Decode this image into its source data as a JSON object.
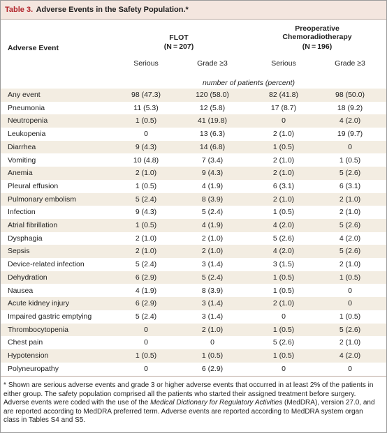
{
  "title": {
    "label": "Table 3.",
    "text": "Adverse Events in the Safety Population.*"
  },
  "header": {
    "event_column": "Adverse Event",
    "groups": [
      {
        "name": "FLOT",
        "n": "(N = 207)"
      },
      {
        "name": "Preoperative Chemoradiotherapy",
        "n": "(N = 196)"
      }
    ],
    "subheaders": [
      "Serious",
      "Grade ≥3",
      "Serious",
      "Grade ≥3"
    ],
    "units": "number of patients (percent)"
  },
  "table": {
    "rows": [
      [
        "Any event",
        "98 (47.3)",
        "120 (58.0)",
        "82 (41.8)",
        "98 (50.0)"
      ],
      [
        "Pneumonia",
        "11 (5.3)",
        "12 (5.8)",
        "17 (8.7)",
        "18 (9.2)"
      ],
      [
        "Neutropenia",
        "1 (0.5)",
        "41 (19.8)",
        "0",
        "4 (2.0)"
      ],
      [
        "Leukopenia",
        "0",
        "13 (6.3)",
        "2 (1.0)",
        "19 (9.7)"
      ],
      [
        "Diarrhea",
        "9 (4.3)",
        "14 (6.8)",
        "1 (0.5)",
        "0"
      ],
      [
        "Vomiting",
        "10 (4.8)",
        "7 (3.4)",
        "2 (1.0)",
        "1 (0.5)"
      ],
      [
        "Anemia",
        "2 (1.0)",
        "9 (4.3)",
        "2 (1.0)",
        "5 (2.6)"
      ],
      [
        "Pleural effusion",
        "1 (0.5)",
        "4 (1.9)",
        "6 (3.1)",
        "6 (3.1)"
      ],
      [
        "Pulmonary embolism",
        "5 (2.4)",
        "8 (3.9)",
        "2 (1.0)",
        "2 (1.0)"
      ],
      [
        "Infection",
        "9 (4.3)",
        "5 (2.4)",
        "1 (0.5)",
        "2 (1.0)"
      ],
      [
        "Atrial fibrillation",
        "1 (0.5)",
        "4 (1.9)",
        "4 (2.0)",
        "5 (2.6)"
      ],
      [
        "Dysphagia",
        "2 (1.0)",
        "2 (1.0)",
        "5 (2.6)",
        "4 (2.0)"
      ],
      [
        "Sepsis",
        "2 (1.0)",
        "2 (1.0)",
        "4 (2.0)",
        "5 (2.6)"
      ],
      [
        "Device-related infection",
        "5 (2.4)",
        "3 (1.4)",
        "3 (1.5)",
        "2 (1.0)"
      ],
      [
        "Dehydration",
        "6 (2.9)",
        "5 (2.4)",
        "1 (0.5)",
        "1 (0.5)"
      ],
      [
        "Nausea",
        "4 (1.9)",
        "8 (3.9)",
        "1 (0.5)",
        "0"
      ],
      [
        "Acute kidney injury",
        "6 (2.9)",
        "3 (1.4)",
        "2 (1.0)",
        "0"
      ],
      [
        "Impaired gastric emptying",
        "5 (2.4)",
        "3 (1.4)",
        "0",
        "1 (0.5)"
      ],
      [
        "Thrombocytopenia",
        "0",
        "2 (1.0)",
        "1 (0.5)",
        "5 (2.6)"
      ],
      [
        "Chest pain",
        "0",
        "0",
        "5 (2.6)",
        "2 (1.0)"
      ],
      [
        "Hypotension",
        "1 (0.5)",
        "1 (0.5)",
        "1 (0.5)",
        "4 (2.0)"
      ],
      [
        "Polyneuropathy",
        "0",
        "6 (2.9)",
        "0",
        "0"
      ]
    ]
  },
  "footnote": {
    "marker": "*",
    "parts": [
      "Shown are serious adverse events and grade 3 or higher adverse events that occurred in at least 2% of the patients in either group. The safety population comprised all the patients who started their assigned treatment before surgery. Adverse events were coded with the use of the ",
      "Medical Dictionary for Regulatory Activities",
      " (MedDRA), version 27.0, and are reported according to MedDRA preferred term. Adverse events are reported according to MedDRA system organ class in Tables S4 and S5."
    ]
  }
}
